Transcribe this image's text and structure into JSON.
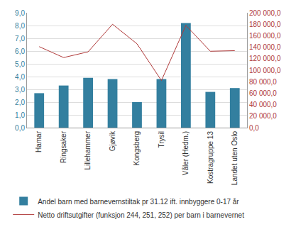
{
  "chart_data": {
    "type": "bar",
    "categories": [
      "Hamar",
      "Ringsaker",
      "Lillehammer",
      "Gjøvik",
      "Kongsberg",
      "Trysil",
      "Våler (Hedm.)",
      "Kostragruppe 13",
      "Landet uten Oslo"
    ],
    "series": [
      {
        "name": "Andel barn med barnevernstiltak pr 31.12 ift. innbyggere 0-17 år",
        "type": "bar",
        "color": "#337f9f",
        "values": [
          2.7,
          3.3,
          3.9,
          3.8,
          2.0,
          3.8,
          8.2,
          2.8,
          3.1
        ]
      },
      {
        "name": "Netto driftsutgifter (funksjon 244, 251, 252) per barn i barnevernet",
        "type": "line",
        "axis": "y2",
        "color": "#b03a3a",
        "values": [
          141000,
          122000,
          132000,
          180000,
          146000,
          82000,
          178000,
          133000,
          134000
        ]
      }
    ],
    "ylim": [
      0,
      9
    ],
    "yticks": [
      {
        "value": 0,
        "label": "0,0"
      },
      {
        "value": 1,
        "label": "1,0"
      },
      {
        "value": 2,
        "label": "2,0"
      },
      {
        "value": 3,
        "label": "3,0"
      },
      {
        "value": 4,
        "label": "4,0"
      },
      {
        "value": 5,
        "label": "5,0"
      },
      {
        "value": 6,
        "label": "6,0"
      },
      {
        "value": 7,
        "label": "7,0"
      },
      {
        "value": 8,
        "label": "8,0"
      },
      {
        "value": 9,
        "label": "9,0"
      }
    ],
    "y2lim": [
      0,
      200000
    ],
    "y2ticks": [
      {
        "value": 0,
        "label": "0,0"
      },
      {
        "value": 20000,
        "label": "20 000,0"
      },
      {
        "value": 40000,
        "label": "40 000,0"
      },
      {
        "value": 60000,
        "label": "60 000,0"
      },
      {
        "value": 80000,
        "label": "80 000,0"
      },
      {
        "value": 100000,
        "label": "100 000,0"
      },
      {
        "value": 120000,
        "label": "120 000,0"
      },
      {
        "value": 140000,
        "label": "140 000,0"
      },
      {
        "value": 160000,
        "label": "160 000,0"
      },
      {
        "value": 180000,
        "label": "180 000,0"
      },
      {
        "value": 200000,
        "label": "200 000,0"
      }
    ],
    "grid": true,
    "legend": "bottom"
  }
}
